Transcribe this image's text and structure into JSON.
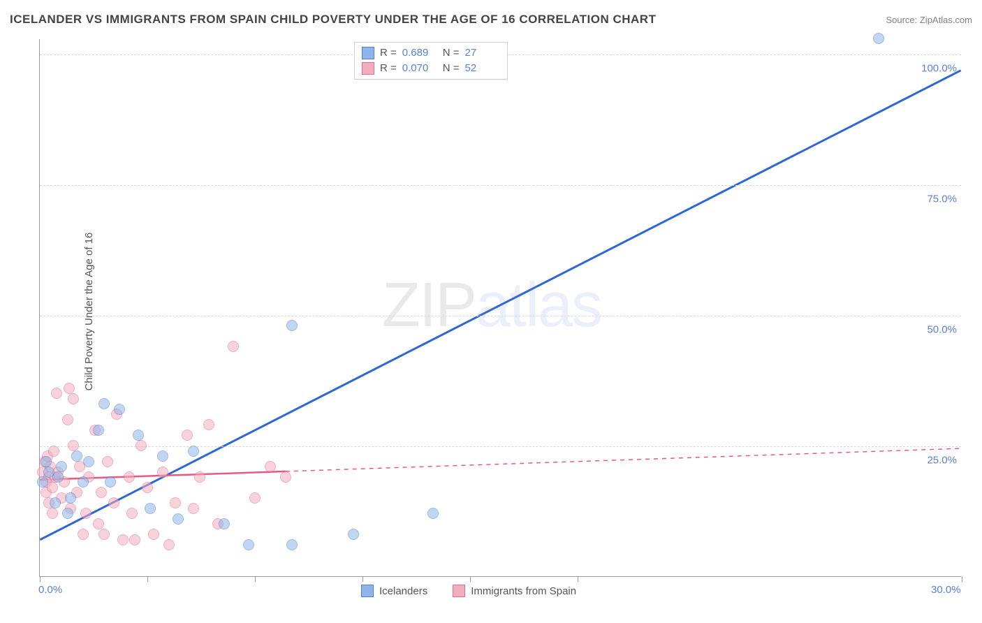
{
  "title": "ICELANDER VS IMMIGRANTS FROM SPAIN CHILD POVERTY UNDER THE AGE OF 16 CORRELATION CHART",
  "source_label": "Source: ",
  "source_name": "ZipAtlas.com",
  "y_axis_label": "Child Poverty Under the Age of 16",
  "watermark_a": "ZIP",
  "watermark_b": "atlas",
  "chart": {
    "type": "scatter",
    "background_color": "#ffffff",
    "grid_color": "#d8d8d8",
    "axis_color": "#999999",
    "xlim": [
      0.0,
      30.0
    ],
    "ylim": [
      0.0,
      103.0
    ],
    "x_ticks": [
      0.0,
      3.5,
      7.0,
      10.5,
      14.0,
      17.5,
      30.0
    ],
    "x_tick_labels": {
      "0": "0.0%",
      "30": "30.0%"
    },
    "y_ticks": [
      25.0,
      50.0,
      75.0,
      100.0
    ],
    "y_tick_labels": {
      "25": "25.0%",
      "50": "50.0%",
      "75": "75.0%",
      "100": "100.0%"
    },
    "marker_radius": 8,
    "marker_opacity": 0.55,
    "series": [
      {
        "name": "Icelanders",
        "color_fill": "#8fb5ea",
        "color_stroke": "#4f80d0",
        "R": "0.689",
        "N": "27",
        "trend": {
          "x1": 0.0,
          "y1": 7.0,
          "x2": 30.0,
          "y2": 97.0,
          "solid_until_x": 30.0,
          "color": "#2f66d6",
          "width": 3
        },
        "points": [
          {
            "x": 0.1,
            "y": 18
          },
          {
            "x": 0.2,
            "y": 22
          },
          {
            "x": 0.3,
            "y": 20
          },
          {
            "x": 0.5,
            "y": 14
          },
          {
            "x": 0.6,
            "y": 19
          },
          {
            "x": 0.7,
            "y": 21
          },
          {
            "x": 0.9,
            "y": 12
          },
          {
            "x": 1.0,
            "y": 15
          },
          {
            "x": 1.2,
            "y": 23
          },
          {
            "x": 1.4,
            "y": 18
          },
          {
            "x": 1.6,
            "y": 22
          },
          {
            "x": 1.9,
            "y": 28
          },
          {
            "x": 2.1,
            "y": 33
          },
          {
            "x": 2.3,
            "y": 18
          },
          {
            "x": 2.6,
            "y": 32
          },
          {
            "x": 3.2,
            "y": 27
          },
          {
            "x": 3.6,
            "y": 13
          },
          {
            "x": 4.0,
            "y": 23
          },
          {
            "x": 4.5,
            "y": 11
          },
          {
            "x": 5.0,
            "y": 24
          },
          {
            "x": 6.0,
            "y": 10
          },
          {
            "x": 6.8,
            "y": 6
          },
          {
            "x": 8.2,
            "y": 6
          },
          {
            "x": 8.2,
            "y": 48
          },
          {
            "x": 10.2,
            "y": 8
          },
          {
            "x": 12.8,
            "y": 12
          },
          {
            "x": 27.3,
            "y": 103
          }
        ]
      },
      {
        "name": "Immigrants from Spain",
        "color_fill": "#f3aebd",
        "color_stroke": "#e16f8f",
        "R": "0.070",
        "N": "52",
        "trend": {
          "x1": 0.0,
          "y1": 18.5,
          "x2": 30.0,
          "y2": 24.5,
          "solid_until_x": 8.0,
          "color": "#e65a82",
          "width": 2.5
        },
        "points": [
          {
            "x": 0.1,
            "y": 20
          },
          {
            "x": 0.15,
            "y": 22
          },
          {
            "x": 0.2,
            "y": 18
          },
          {
            "x": 0.2,
            "y": 16
          },
          {
            "x": 0.25,
            "y": 23
          },
          {
            "x": 0.3,
            "y": 19
          },
          {
            "x": 0.3,
            "y": 14
          },
          {
            "x": 0.35,
            "y": 21
          },
          {
            "x": 0.4,
            "y": 17
          },
          {
            "x": 0.4,
            "y": 12
          },
          {
            "x": 0.45,
            "y": 24
          },
          {
            "x": 0.5,
            "y": 19
          },
          {
            "x": 0.55,
            "y": 35
          },
          {
            "x": 0.6,
            "y": 20
          },
          {
            "x": 0.7,
            "y": 15
          },
          {
            "x": 0.8,
            "y": 18
          },
          {
            "x": 0.9,
            "y": 30
          },
          {
            "x": 0.95,
            "y": 36
          },
          {
            "x": 1.0,
            "y": 13
          },
          {
            "x": 1.1,
            "y": 25
          },
          {
            "x": 1.1,
            "y": 34
          },
          {
            "x": 1.2,
            "y": 16
          },
          {
            "x": 1.3,
            "y": 21
          },
          {
            "x": 1.4,
            "y": 8
          },
          {
            "x": 1.5,
            "y": 12
          },
          {
            "x": 1.6,
            "y": 19
          },
          {
            "x": 1.8,
            "y": 28
          },
          {
            "x": 1.9,
            "y": 10
          },
          {
            "x": 2.0,
            "y": 16
          },
          {
            "x": 2.1,
            "y": 8
          },
          {
            "x": 2.2,
            "y": 22
          },
          {
            "x": 2.4,
            "y": 14
          },
          {
            "x": 2.5,
            "y": 31
          },
          {
            "x": 2.7,
            "y": 7
          },
          {
            "x": 2.9,
            "y": 19
          },
          {
            "x": 3.0,
            "y": 12
          },
          {
            "x": 3.1,
            "y": 7
          },
          {
            "x": 3.3,
            "y": 25
          },
          {
            "x": 3.5,
            "y": 17
          },
          {
            "x": 3.7,
            "y": 8
          },
          {
            "x": 4.0,
            "y": 20
          },
          {
            "x": 4.2,
            "y": 6
          },
          {
            "x": 4.4,
            "y": 14
          },
          {
            "x": 4.8,
            "y": 27
          },
          {
            "x": 5.0,
            "y": 13
          },
          {
            "x": 5.2,
            "y": 19
          },
          {
            "x": 5.5,
            "y": 29
          },
          {
            "x": 5.8,
            "y": 10
          },
          {
            "x": 6.3,
            "y": 44
          },
          {
            "x": 7.0,
            "y": 15
          },
          {
            "x": 7.5,
            "y": 21
          },
          {
            "x": 8.0,
            "y": 19
          }
        ]
      }
    ]
  },
  "legend_top": {
    "r_label": "R  =",
    "n_label": "N  ="
  },
  "legend_bottom": {
    "series1_label": "Icelanders",
    "series2_label": "Immigrants from Spain"
  }
}
